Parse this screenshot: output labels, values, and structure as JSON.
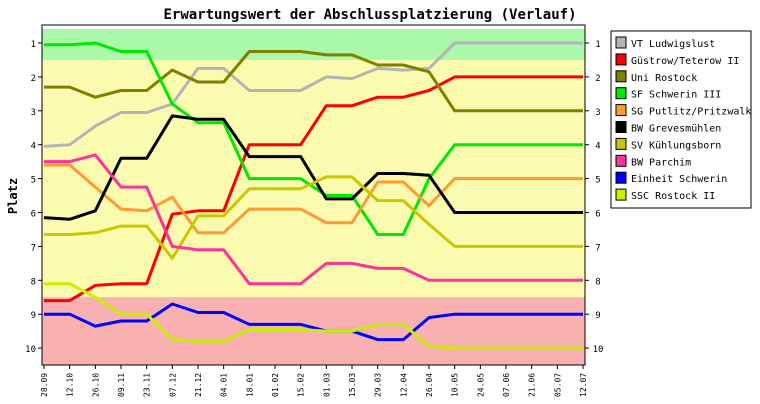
{
  "chart_data": {
    "type": "line",
    "title": "Erwartungswert der Abschlussplatzierung (Verlauf)",
    "ylabel": "Platz",
    "xlabel": "",
    "ylim": [
      10,
      1
    ],
    "y_ticks": [
      1,
      2,
      3,
      4,
      5,
      6,
      7,
      8,
      9,
      10
    ],
    "grid": false,
    "legend_position": "right",
    "zones": [
      {
        "from": 0.5,
        "to": 1.5,
        "color": "#aaf8aa"
      },
      {
        "from": 1.5,
        "to": 8.5,
        "color": "#fbfbb0"
      },
      {
        "from": 8.5,
        "to": 10.5,
        "color": "#f8b0b0"
      }
    ],
    "x": [
      "28.09",
      "12.10",
      "26.10",
      "09.11",
      "23.11",
      "07.12",
      "21.12",
      "04.01",
      "18.01",
      "01.02",
      "15.02",
      "01.03",
      "15.03",
      "29.03",
      "12.04",
      "26.04",
      "10.05",
      "24.05",
      "07.06",
      "21.06",
      "05.07",
      "12.07"
    ],
    "series": [
      {
        "name": "VT Ludwigslust",
        "color": "#b4b4b4",
        "values": [
          4.05,
          4.0,
          3.45,
          3.05,
          3.05,
          2.8,
          1.75,
          1.75,
          2.4,
          2.4,
          2.4,
          2.0,
          2.05,
          1.75,
          1.8,
          1.75,
          1.0,
          1.0,
          1.0,
          1.0,
          1.0,
          1.0
        ]
      },
      {
        "name": "Güstrow/Teterow II",
        "color": "#ff0000",
        "values": [
          8.6,
          8.6,
          8.15,
          8.1,
          8.1,
          6.05,
          5.95,
          5.95,
          4.0,
          4.0,
          4.0,
          2.85,
          2.85,
          2.6,
          2.6,
          2.4,
          2.0,
          2.0,
          2.0,
          2.0,
          2.0,
          2.0
        ]
      },
      {
        "name": "Uni Rostock",
        "color": "#808000",
        "values": [
          2.3,
          2.3,
          2.6,
          2.4,
          2.4,
          1.8,
          2.15,
          2.15,
          1.25,
          1.25,
          1.25,
          1.35,
          1.35,
          1.65,
          1.65,
          1.85,
          3.0,
          3.0,
          3.0,
          3.0,
          3.0,
          3.0
        ]
      },
      {
        "name": "SF Schwerin III",
        "color": "#00e800",
        "values": [
          1.05,
          1.05,
          1.0,
          1.25,
          1.25,
          2.8,
          3.35,
          3.35,
          5.0,
          5.0,
          5.0,
          5.5,
          5.5,
          6.65,
          6.65,
          5.0,
          4.0,
          4.0,
          4.0,
          4.0,
          4.0,
          4.0
        ]
      },
      {
        "name": "SG Putlitz/Pritzwalk",
        "color": "#ff9933",
        "values": [
          4.6,
          4.6,
          5.25,
          5.9,
          5.95,
          5.55,
          6.6,
          6.6,
          5.9,
          5.9,
          5.9,
          6.3,
          6.3,
          5.1,
          5.1,
          5.8,
          5.0,
          5.0,
          5.0,
          5.0,
          5.0,
          5.0
        ]
      },
      {
        "name": "BW Grevesmühlen",
        "color": "#000000",
        "values": [
          6.15,
          6.2,
          5.95,
          4.4,
          4.4,
          3.15,
          3.25,
          3.25,
          4.35,
          4.35,
          4.35,
          5.6,
          5.6,
          4.85,
          4.85,
          4.9,
          6.0,
          6.0,
          6.0,
          6.0,
          6.0,
          6.0
        ]
      },
      {
        "name": "SV Kühlungsborn",
        "color": "#c8c800",
        "values": [
          6.65,
          6.65,
          6.6,
          6.4,
          6.4,
          7.35,
          6.1,
          6.1,
          5.3,
          5.3,
          5.3,
          4.95,
          4.95,
          5.65,
          5.65,
          6.35,
          7.0,
          7.0,
          7.0,
          7.0,
          7.0,
          7.0
        ]
      },
      {
        "name": "BW Parchim",
        "color": "#ff3399",
        "values": [
          4.5,
          4.5,
          4.3,
          5.25,
          5.25,
          7.0,
          7.1,
          7.1,
          8.1,
          8.1,
          8.1,
          7.5,
          7.5,
          7.65,
          7.65,
          8.0,
          8.0,
          8.0,
          8.0,
          8.0,
          8.0,
          8.0
        ]
      },
      {
        "name": "Einheit Schwerin",
        "color": "#0000ff",
        "values": [
          9.0,
          9.0,
          9.35,
          9.2,
          9.2,
          8.7,
          8.95,
          8.95,
          9.3,
          9.3,
          9.3,
          9.5,
          9.5,
          9.75,
          9.75,
          9.1,
          9.0,
          9.0,
          9.0,
          9.0,
          9.0,
          9.0
        ]
      },
      {
        "name": "SSC Rostock II",
        "color": "#c8f000",
        "values": [
          8.1,
          8.1,
          8.5,
          9.0,
          9.0,
          9.75,
          9.8,
          9.8,
          9.45,
          9.45,
          9.45,
          9.5,
          9.5,
          9.3,
          9.3,
          9.95,
          10.0,
          10.0,
          10.0,
          10.0,
          10.0,
          10.0
        ]
      }
    ]
  }
}
